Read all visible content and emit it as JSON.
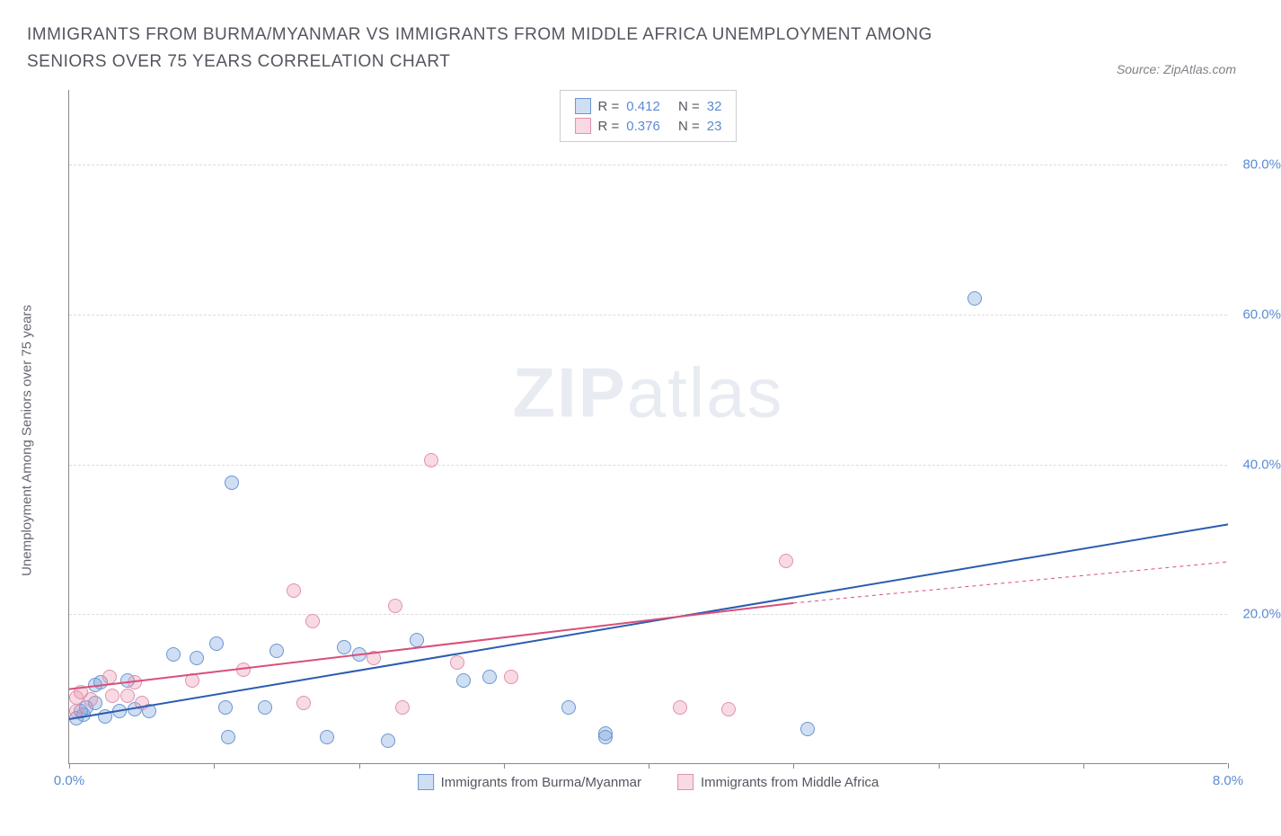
{
  "header": {
    "title": "IMMIGRANTS FROM BURMA/MYANMAR VS IMMIGRANTS FROM MIDDLE AFRICA UNEMPLOYMENT AMONG SENIORS OVER 75 YEARS CORRELATION CHART",
    "source_prefix": "Source: ",
    "source_name": "ZipAtlas.com"
  },
  "watermark": {
    "zip": "ZIP",
    "atlas": "atlas"
  },
  "chart": {
    "type": "scatter",
    "y_axis_label": "Unemployment Among Seniors over 75 years",
    "x_range": [
      0,
      8
    ],
    "y_range": [
      0,
      90
    ],
    "x_ticks": [
      {
        "v": 0.0,
        "label": "0.0%"
      },
      {
        "v": 1.0,
        "label": ""
      },
      {
        "v": 2.0,
        "label": ""
      },
      {
        "v": 3.0,
        "label": ""
      },
      {
        "v": 4.0,
        "label": ""
      },
      {
        "v": 5.0,
        "label": ""
      },
      {
        "v": 6.0,
        "label": ""
      },
      {
        "v": 7.0,
        "label": ""
      },
      {
        "v": 8.0,
        "label": "8.0%"
      }
    ],
    "y_ticks": [
      {
        "v": 20,
        "label": "20.0%"
      },
      {
        "v": 40,
        "label": "40.0%"
      },
      {
        "v": 60,
        "label": "60.0%"
      },
      {
        "v": 80,
        "label": "80.0%"
      }
    ],
    "grid_color": "#dcdcdc",
    "background_color": "#ffffff",
    "series": [
      {
        "name": "Immigrants from Burma/Myanmar",
        "color_fill": "rgba(120,160,220,0.35)",
        "color_stroke": "#6a96d0",
        "marker_size": 16,
        "r_label": "R =",
        "r_value": "0.412",
        "n_label": "N =",
        "n_value": "32",
        "trend": {
          "x1": 0.0,
          "y1": 6.0,
          "x2": 8.0,
          "y2": 32.0,
          "color": "#2a5db0",
          "width": 2
        },
        "points": [
          {
            "x": 0.05,
            "y": 6.0
          },
          {
            "x": 0.08,
            "y": 7.0
          },
          {
            "x": 0.1,
            "y": 6.5
          },
          {
            "x": 0.12,
            "y": 7.5
          },
          {
            "x": 0.18,
            "y": 10.5
          },
          {
            "x": 0.18,
            "y": 8.0
          },
          {
            "x": 0.22,
            "y": 10.8
          },
          {
            "x": 0.25,
            "y": 6.3
          },
          {
            "x": 0.35,
            "y": 7.0
          },
          {
            "x": 0.4,
            "y": 11.0
          },
          {
            "x": 0.45,
            "y": 7.2
          },
          {
            "x": 0.55,
            "y": 7.0
          },
          {
            "x": 0.72,
            "y": 14.5
          },
          {
            "x": 0.88,
            "y": 14.0
          },
          {
            "x": 1.02,
            "y": 16.0
          },
          {
            "x": 1.08,
            "y": 7.5
          },
          {
            "x": 1.12,
            "y": 37.5
          },
          {
            "x": 1.1,
            "y": 3.5
          },
          {
            "x": 1.35,
            "y": 7.5
          },
          {
            "x": 1.43,
            "y": 15.0
          },
          {
            "x": 1.78,
            "y": 3.5
          },
          {
            "x": 1.9,
            "y": 15.5
          },
          {
            "x": 2.0,
            "y": 14.5
          },
          {
            "x": 2.2,
            "y": 3.0
          },
          {
            "x": 2.4,
            "y": 16.5
          },
          {
            "x": 2.72,
            "y": 11.0
          },
          {
            "x": 2.9,
            "y": 11.5
          },
          {
            "x": 3.45,
            "y": 7.5
          },
          {
            "x": 3.7,
            "y": 4.0
          },
          {
            "x": 3.7,
            "y": 3.5
          },
          {
            "x": 5.1,
            "y": 4.6
          },
          {
            "x": 6.25,
            "y": 62.0
          }
        ]
      },
      {
        "name": "Immigrants from Middle Africa",
        "color_fill": "rgba(235,150,175,0.35)",
        "color_stroke": "#e191ac",
        "marker_size": 16,
        "r_label": "R =",
        "r_value": "0.376",
        "n_label": "N =",
        "n_value": "23",
        "trend": {
          "x1": 0.0,
          "y1": 10.0,
          "x2": 5.0,
          "y2": 21.5,
          "color": "#d94f78",
          "width": 2,
          "dash_x1": 5.0,
          "dash_y1": 21.5,
          "dash_x2": 8.0,
          "dash_y2": 27.0
        },
        "points": [
          {
            "x": 0.05,
            "y": 7.0
          },
          {
            "x": 0.05,
            "y": 8.8
          },
          {
            "x": 0.08,
            "y": 9.5
          },
          {
            "x": 0.15,
            "y": 8.5
          },
          {
            "x": 0.28,
            "y": 11.5
          },
          {
            "x": 0.3,
            "y": 9.0
          },
          {
            "x": 0.4,
            "y": 9.0
          },
          {
            "x": 0.45,
            "y": 10.8
          },
          {
            "x": 0.5,
            "y": 8.0
          },
          {
            "x": 0.85,
            "y": 11.0
          },
          {
            "x": 1.2,
            "y": 12.5
          },
          {
            "x": 1.55,
            "y": 23.0
          },
          {
            "x": 1.62,
            "y": 8.0
          },
          {
            "x": 1.68,
            "y": 19.0
          },
          {
            "x": 2.1,
            "y": 14.0
          },
          {
            "x": 2.25,
            "y": 21.0
          },
          {
            "x": 2.3,
            "y": 7.5
          },
          {
            "x": 2.5,
            "y": 40.5
          },
          {
            "x": 2.68,
            "y": 13.5
          },
          {
            "x": 3.05,
            "y": 11.5
          },
          {
            "x": 4.22,
            "y": 7.5
          },
          {
            "x": 4.55,
            "y": 7.2
          },
          {
            "x": 4.95,
            "y": 27.0
          }
        ]
      }
    ],
    "legend_bottom": [
      {
        "swatch_fill": "rgba(120,160,220,0.35)",
        "swatch_stroke": "#6a96d0",
        "label": "Immigrants from Burma/Myanmar"
      },
      {
        "swatch_fill": "rgba(235,150,175,0.35)",
        "swatch_stroke": "#e191ac",
        "label": "Immigrants from Middle Africa"
      }
    ]
  }
}
